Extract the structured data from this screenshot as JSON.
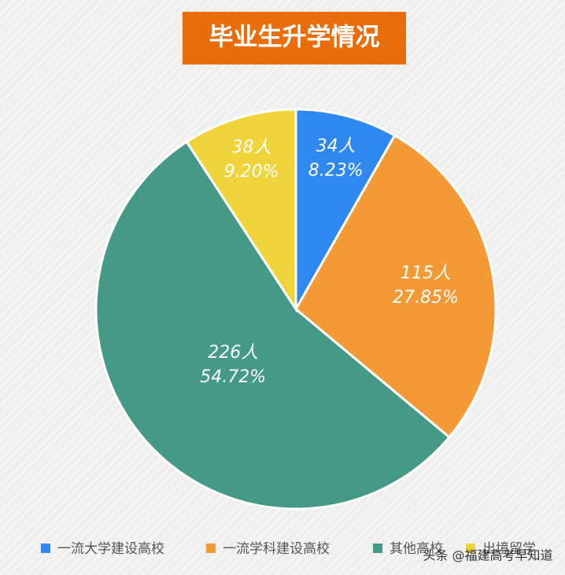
{
  "chart_data": {
    "type": "pie",
    "title": "毕业生升学情况",
    "categories": [
      "一流大学建设高校",
      "一流学科建设高校",
      "其他高校",
      "出境留学"
    ],
    "values": [
      34,
      115,
      226,
      38
    ],
    "value_labels": [
      "34人",
      "115人",
      "226人",
      "38人"
    ],
    "percent_labels": [
      "8.23%",
      "27.85%",
      "54.72%",
      "9.20%"
    ],
    "colors": [
      "#2f87f0",
      "#f39a36",
      "#459a87",
      "#f0d43c"
    ],
    "legend": "bottom",
    "watermark": "头条 @福建高考早知道"
  }
}
